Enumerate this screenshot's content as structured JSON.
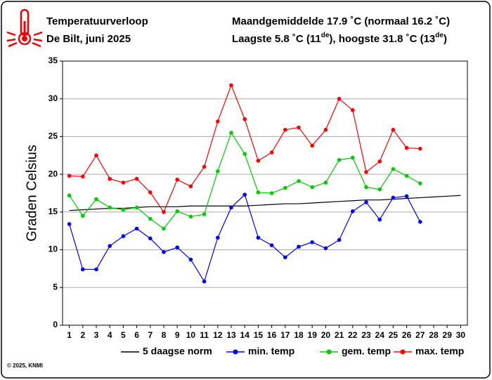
{
  "header": {
    "title": "Temperatuurverloop",
    "subtitle": "De Bilt, juni 2025",
    "summary_1": "Maandgemiddelde 17.9 ˚C (normaal 16.2 ˚C)",
    "summary_2": [
      "Laagste 5.8 ˚C (11",
      "de",
      "), hoogste 31.8 ˚C (13",
      "de",
      ")"
    ]
  },
  "footer": "© 2025, KNMI",
  "chart_data": {
    "type": "line",
    "y_label": "Graden Celsius",
    "x": [
      1,
      2,
      3,
      4,
      5,
      6,
      7,
      8,
      9,
      10,
      11,
      12,
      13,
      14,
      15,
      16,
      17,
      18,
      19,
      20,
      21,
      22,
      23,
      24,
      25,
      26,
      27,
      28,
      29,
      30
    ],
    "xlim": [
      0.5,
      30.5
    ],
    "xticks": [
      1,
      2,
      3,
      4,
      5,
      6,
      7,
      8,
      9,
      10,
      11,
      12,
      13,
      14,
      15,
      16,
      17,
      18,
      19,
      20,
      21,
      22,
      23,
      24,
      25,
      26,
      27,
      28,
      29,
      30
    ],
    "ylim": [
      0,
      35
    ],
    "yticks": [
      0,
      5,
      10,
      15,
      20,
      25,
      30,
      35
    ],
    "grid": true,
    "series": [
      {
        "name": "5 daagse norm",
        "color": "#000000",
        "marker": false,
        "values": [
          15.2,
          15.3,
          15.4,
          15.5,
          15.5,
          15.6,
          15.7,
          15.7,
          15.7,
          15.8,
          15.8,
          15.8,
          15.8,
          15.8,
          15.9,
          16.0,
          16.1,
          16.1,
          16.2,
          16.3,
          16.4,
          16.5,
          16.6,
          16.6,
          16.7,
          16.8,
          16.9,
          17.0,
          17.1,
          17.2
        ]
      },
      {
        "name": "min. temp",
        "color": "#0000ff",
        "marker": true,
        "values": [
          13.4,
          7.4,
          7.4,
          10.5,
          11.8,
          12.8,
          11.5,
          9.7,
          10.3,
          8.7,
          5.8,
          11.6,
          15.6,
          17.3,
          11.6,
          10.6,
          9.0,
          10.4,
          11.0,
          10.2,
          11.3,
          15.1,
          16.3,
          14.0,
          16.9,
          17.1,
          13.7,
          null,
          null,
          null
        ]
      },
      {
        "name": "gem. temp",
        "color": "#00cc00",
        "marker": true,
        "values": [
          17.2,
          14.5,
          16.7,
          15.6,
          15.3,
          15.6,
          14.1,
          12.8,
          15.1,
          14.4,
          14.7,
          20.4,
          25.5,
          22.7,
          17.6,
          17.5,
          18.2,
          19.1,
          18.3,
          18.9,
          21.9,
          22.2,
          18.3,
          18.0,
          20.7,
          19.8,
          18.8,
          null,
          null,
          null
        ]
      },
      {
        "name": "max. temp",
        "color": "#ff0000",
        "marker": true,
        "values": [
          19.8,
          19.7,
          22.5,
          19.4,
          18.9,
          19.4,
          17.6,
          15.0,
          19.3,
          18.4,
          21.0,
          27.0,
          31.8,
          27.3,
          21.8,
          22.9,
          25.9,
          26.2,
          23.8,
          25.9,
          30.0,
          28.5,
          20.3,
          21.7,
          25.9,
          23.5,
          23.4,
          null,
          null,
          null
        ]
      }
    ]
  }
}
